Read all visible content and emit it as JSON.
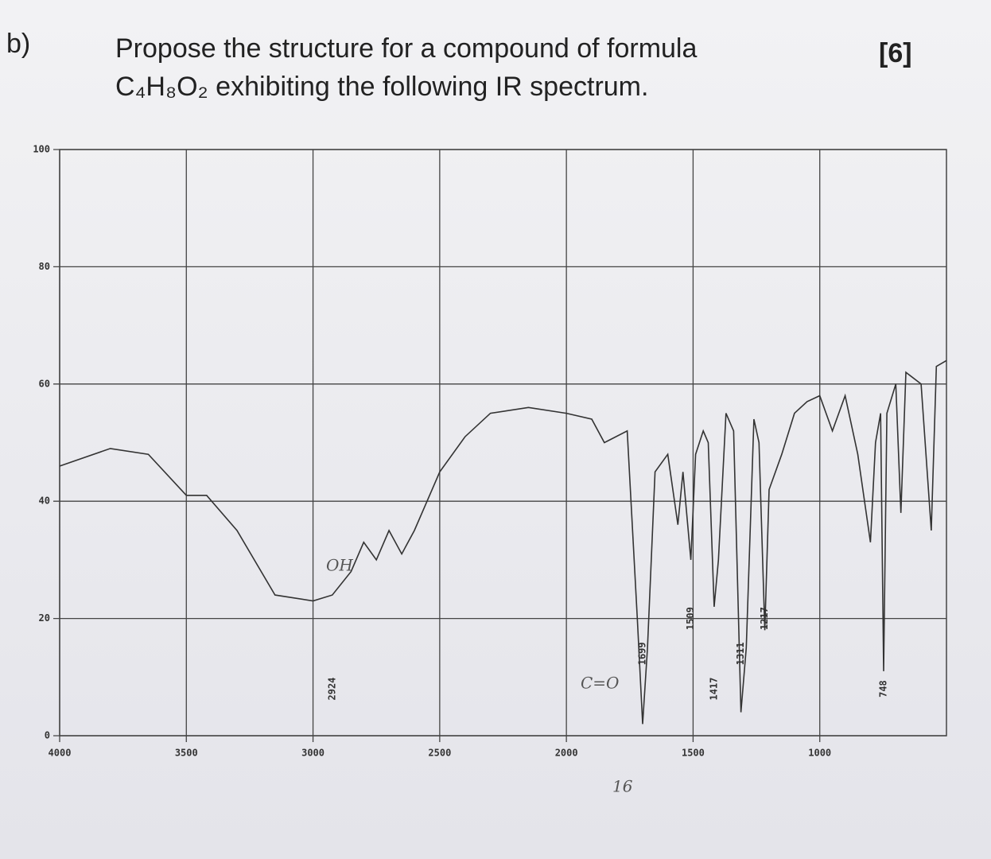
{
  "question": {
    "label": "b)",
    "line1": "Propose the structure for a compound of formula",
    "line2": "C₄H₈O₂ exhibiting the following IR spectrum.",
    "marks": "[6]"
  },
  "chart_data": {
    "type": "line",
    "x": [
      4000,
      3800,
      3650,
      3500,
      3420,
      3300,
      3150,
      3000,
      2924,
      2850,
      2800,
      2750,
      2700,
      2650,
      2600,
      2500,
      2400,
      2300,
      2150,
      2000,
      1900,
      1850,
      1760,
      1720,
      1699,
      1680,
      1650,
      1600,
      1560,
      1540,
      1509,
      1490,
      1460,
      1440,
      1417,
      1400,
      1370,
      1340,
      1311,
      1290,
      1260,
      1240,
      1217,
      1200,
      1150,
      1100,
      1050,
      1000,
      950,
      900,
      850,
      800,
      780,
      760,
      748,
      735,
      700,
      680,
      660,
      600,
      560,
      540,
      500
    ],
    "values": [
      46,
      49,
      48,
      41,
      41,
      35,
      24,
      23,
      24,
      28,
      33,
      30,
      35,
      31,
      35,
      45,
      51,
      55,
      56,
      55,
      54,
      50,
      52,
      20,
      2,
      15,
      45,
      48,
      36,
      45,
      30,
      48,
      52,
      50,
      22,
      30,
      55,
      52,
      4,
      15,
      54,
      50,
      18,
      42,
      48,
      55,
      57,
      58,
      52,
      58,
      48,
      33,
      50,
      55,
      11,
      55,
      60,
      38,
      62,
      60,
      35,
      63,
      64
    ],
    "color": "#333333",
    "xlim": [
      4000,
      500
    ],
    "xticks": [
      4000,
      3500,
      3000,
      2500,
      2000,
      1500,
      1000
    ],
    "ylim": [
      0,
      100
    ],
    "yticks": [
      0,
      20,
      40,
      60,
      80,
      100
    ],
    "grid": true,
    "peaks": [
      2924,
      1699,
      1509,
      1417,
      1311,
      1217,
      748
    ],
    "annotations": [
      "OH",
      "C=O",
      "16"
    ]
  }
}
